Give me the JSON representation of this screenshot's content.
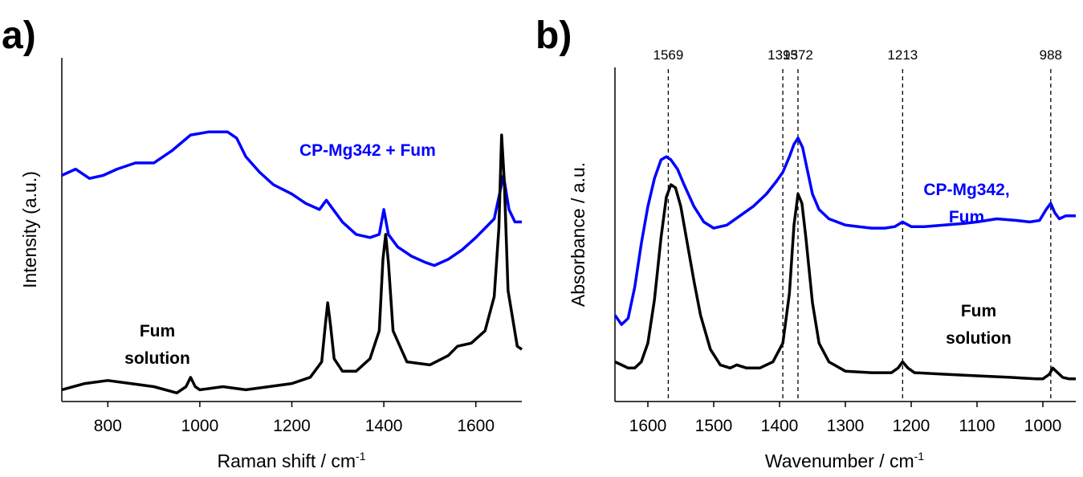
{
  "chart_data": [
    {
      "panel": "a)",
      "type": "line",
      "xlabel": "Raman shift / cm",
      "xlabel_sup": "-1",
      "ylabel": "Intensity (a.u.)",
      "xlim": [
        700,
        1700
      ],
      "ylim": [
        0,
        1
      ],
      "xticks": [
        "800",
        "1000",
        "1200",
        "1400",
        "1600"
      ],
      "xtick_values": [
        800,
        1000,
        1200,
        1400,
        1600
      ],
      "series": [
        {
          "label": "CP-Mg342 + Fum",
          "color": "#0000ff",
          "x": [
            700,
            730,
            760,
            790,
            820,
            860,
            900,
            940,
            980,
            1020,
            1060,
            1080,
            1100,
            1130,
            1160,
            1200,
            1230,
            1260,
            1275,
            1290,
            1310,
            1340,
            1370,
            1390,
            1400,
            1410,
            1430,
            1460,
            1490,
            1510,
            1540,
            1570,
            1600,
            1620,
            1640,
            1650,
            1660,
            1672,
            1685,
            1700
          ],
          "y": [
            0.72,
            0.74,
            0.71,
            0.72,
            0.74,
            0.76,
            0.76,
            0.8,
            0.85,
            0.86,
            0.86,
            0.84,
            0.78,
            0.73,
            0.69,
            0.66,
            0.63,
            0.61,
            0.64,
            0.61,
            0.57,
            0.53,
            0.52,
            0.53,
            0.61,
            0.53,
            0.49,
            0.46,
            0.44,
            0.43,
            0.45,
            0.48,
            0.52,
            0.55,
            0.58,
            0.65,
            0.72,
            0.61,
            0.57,
            0.57
          ]
        },
        {
          "label": "Fum solution",
          "color": "#000000",
          "x": [
            700,
            750,
            800,
            850,
            900,
            950,
            970,
            980,
            990,
            1000,
            1050,
            1100,
            1150,
            1200,
            1240,
            1265,
            1273,
            1278,
            1284,
            1292,
            1310,
            1340,
            1370,
            1390,
            1398,
            1404,
            1410,
            1420,
            1450,
            1500,
            1540,
            1560,
            1590,
            1620,
            1640,
            1650,
            1656,
            1662,
            1670,
            1690,
            1700
          ],
          "y": [
            0.03,
            0.05,
            0.06,
            0.05,
            0.04,
            0.02,
            0.04,
            0.07,
            0.04,
            0.03,
            0.04,
            0.03,
            0.04,
            0.05,
            0.07,
            0.12,
            0.24,
            0.31,
            0.24,
            0.13,
            0.09,
            0.09,
            0.13,
            0.22,
            0.45,
            0.53,
            0.44,
            0.22,
            0.12,
            0.11,
            0.14,
            0.17,
            0.18,
            0.22,
            0.33,
            0.55,
            0.85,
            0.7,
            0.35,
            0.17,
            0.16
          ]
        }
      ],
      "annotations": {
        "top_label": "CP-Mg342 + Fum",
        "bottom_label_line1": "Fum",
        "bottom_label_line2": "solution"
      }
    },
    {
      "panel": "b)",
      "type": "line",
      "xlabel": "Wavenumber / cm",
      "xlabel_sup": "-1",
      "ylabel": "Absorbance / a.u.",
      "xlim": [
        1650,
        950
      ],
      "ylim": [
        0,
        1
      ],
      "xticks": [
        "1600",
        "1500",
        "1400",
        "1300",
        "1200",
        "1100",
        "1000"
      ],
      "xtick_values": [
        1600,
        1500,
        1400,
        1300,
        1200,
        1100,
        1000
      ],
      "peak_lines": [
        {
          "position": 1569,
          "label": "1569"
        },
        {
          "position": 1395,
          "label": "1395"
        },
        {
          "position": 1372,
          "label": "1372"
        },
        {
          "position": 1213,
          "label": "1213"
        },
        {
          "position": 988,
          "label": "988"
        }
      ],
      "series": [
        {
          "label": "CP-Mg342, Fum",
          "color": "#0000ff",
          "x": [
            1650,
            1640,
            1630,
            1620,
            1610,
            1600,
            1590,
            1580,
            1572,
            1565,
            1555,
            1545,
            1530,
            1515,
            1500,
            1480,
            1460,
            1440,
            1420,
            1405,
            1395,
            1385,
            1378,
            1372,
            1365,
            1358,
            1350,
            1340,
            1325,
            1300,
            1280,
            1260,
            1240,
            1225,
            1213,
            1200,
            1180,
            1150,
            1120,
            1100,
            1070,
            1040,
            1020,
            1005,
            995,
            988,
            982,
            975,
            965,
            950
          ],
          "y": [
            0.27,
            0.24,
            0.26,
            0.36,
            0.5,
            0.62,
            0.71,
            0.77,
            0.78,
            0.77,
            0.74,
            0.69,
            0.62,
            0.57,
            0.55,
            0.56,
            0.59,
            0.62,
            0.66,
            0.7,
            0.73,
            0.78,
            0.82,
            0.84,
            0.81,
            0.74,
            0.66,
            0.61,
            0.58,
            0.56,
            0.555,
            0.55,
            0.55,
            0.555,
            0.57,
            0.555,
            0.555,
            0.56,
            0.565,
            0.57,
            0.58,
            0.575,
            0.57,
            0.575,
            0.61,
            0.63,
            0.6,
            0.58,
            0.59,
            0.59
          ]
        },
        {
          "label": "Fum solution",
          "color": "#000000",
          "x": [
            1650,
            1640,
            1630,
            1620,
            1610,
            1600,
            1590,
            1580,
            1572,
            1565,
            1558,
            1550,
            1540,
            1530,
            1520,
            1505,
            1490,
            1475,
            1465,
            1450,
            1430,
            1410,
            1395,
            1385,
            1378,
            1372,
            1366,
            1360,
            1350,
            1340,
            1325,
            1300,
            1260,
            1230,
            1220,
            1213,
            1205,
            1195,
            1150,
            1100,
            1050,
            1010,
            1000,
            990,
            985,
            980,
            970,
            960,
            950
          ],
          "y": [
            0.12,
            0.11,
            0.1,
            0.1,
            0.12,
            0.18,
            0.32,
            0.52,
            0.65,
            0.69,
            0.68,
            0.62,
            0.5,
            0.38,
            0.27,
            0.16,
            0.11,
            0.1,
            0.11,
            0.1,
            0.1,
            0.12,
            0.18,
            0.34,
            0.56,
            0.66,
            0.63,
            0.52,
            0.31,
            0.18,
            0.12,
            0.09,
            0.085,
            0.085,
            0.1,
            0.12,
            0.1,
            0.085,
            0.08,
            0.075,
            0.07,
            0.065,
            0.065,
            0.08,
            0.1,
            0.09,
            0.07,
            0.065,
            0.065
          ]
        }
      ],
      "annotations": {
        "top_label_line1": "CP-Mg342,",
        "top_label_line2": "Fum",
        "bottom_label_line1": "Fum",
        "bottom_label_line2": "solution"
      }
    }
  ]
}
